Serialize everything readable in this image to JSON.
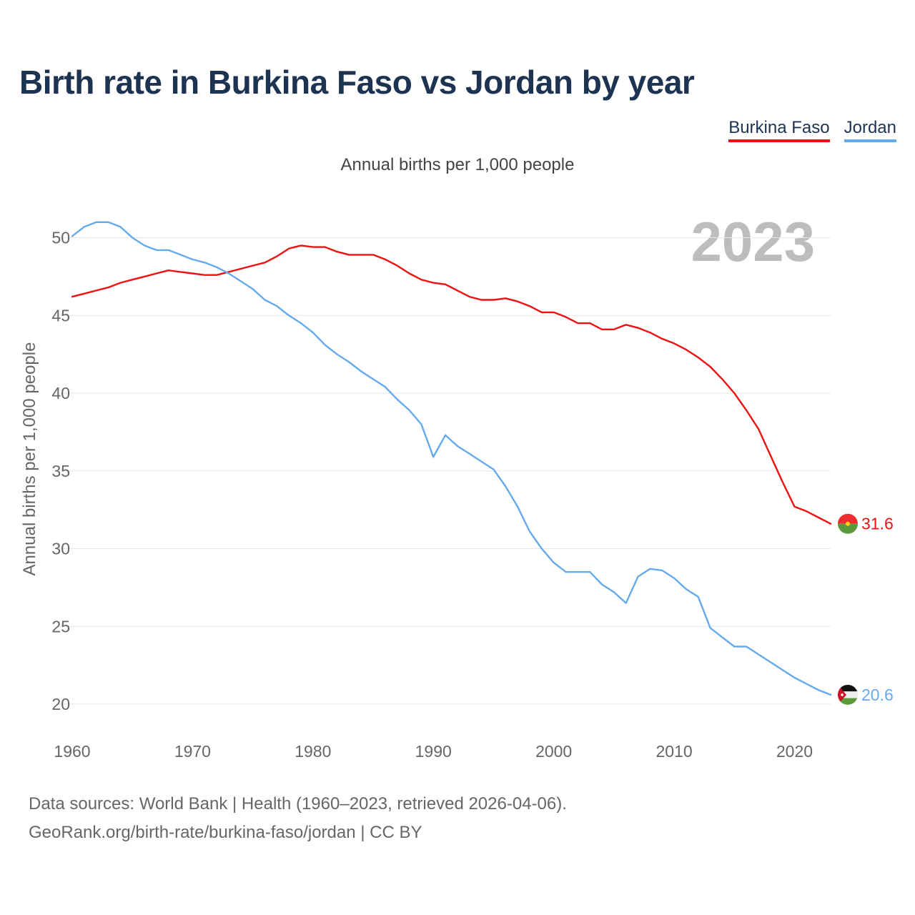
{
  "chart_data": {
    "type": "line",
    "title": "Birth rate in Burkina Faso vs Jordan by year",
    "subtitle": "Annual births per 1,000 people",
    "ylabel": "Annual births per 1,000 people",
    "xlabel": "",
    "year_label": "2023",
    "xlim": [
      1960,
      2023
    ],
    "ylim": [
      18.5,
      53
    ],
    "yticks": [
      20,
      25,
      30,
      35,
      40,
      45,
      50
    ],
    "xticks": [
      1960,
      1970,
      1980,
      1990,
      2000,
      2010,
      2020
    ],
    "x": [
      1960,
      1961,
      1962,
      1963,
      1964,
      1965,
      1966,
      1967,
      1968,
      1969,
      1970,
      1971,
      1972,
      1973,
      1974,
      1975,
      1976,
      1977,
      1978,
      1979,
      1980,
      1981,
      1982,
      1983,
      1984,
      1985,
      1986,
      1987,
      1988,
      1989,
      1990,
      1991,
      1992,
      1993,
      1994,
      1995,
      1996,
      1997,
      1998,
      1999,
      2000,
      2001,
      2002,
      2003,
      2004,
      2005,
      2006,
      2007,
      2008,
      2009,
      2010,
      2011,
      2012,
      2013,
      2014,
      2015,
      2016,
      2017,
      2018,
      2019,
      2020,
      2021,
      2022,
      2023
    ],
    "series": [
      {
        "name": "Burkina Faso",
        "color": "#ee1111",
        "end_label": "31.6",
        "values": [
          46.2,
          46.4,
          46.6,
          46.8,
          47.1,
          47.3,
          47.5,
          47.7,
          47.9,
          47.8,
          47.7,
          47.6,
          47.6,
          47.8,
          48.0,
          48.2,
          48.4,
          48.8,
          49.3,
          49.5,
          49.4,
          49.4,
          49.1,
          48.9,
          48.9,
          48.9,
          48.6,
          48.2,
          47.7,
          47.3,
          47.1,
          47.0,
          46.6,
          46.2,
          46.0,
          46.0,
          46.1,
          45.9,
          45.6,
          45.2,
          45.2,
          44.9,
          44.5,
          44.5,
          44.1,
          44.1,
          44.4,
          44.2,
          43.9,
          43.5,
          43.2,
          42.8,
          42.3,
          41.7,
          40.9,
          40.0,
          38.9,
          37.7,
          36.0,
          34.3,
          32.7,
          32.4,
          32.0,
          31.6
        ]
      },
      {
        "name": "Jordan",
        "color": "#66aaee",
        "end_label": "20.6",
        "values": [
          50.1,
          50.7,
          51.0,
          51.0,
          50.7,
          50.0,
          49.5,
          49.2,
          49.2,
          48.9,
          48.6,
          48.4,
          48.1,
          47.7,
          47.2,
          46.7,
          46.0,
          45.6,
          45.0,
          44.5,
          43.9,
          43.1,
          42.5,
          42.0,
          41.4,
          40.9,
          40.4,
          39.6,
          38.9,
          38.0,
          35.9,
          37.3,
          36.6,
          36.1,
          35.6,
          35.1,
          34.0,
          32.7,
          31.1,
          30.0,
          29.1,
          28.5,
          28.5,
          28.5,
          27.7,
          27.2,
          26.5,
          28.2,
          28.7,
          28.6,
          28.1,
          27.4,
          26.9,
          24.9,
          24.3,
          23.7,
          23.7,
          23.2,
          22.7,
          22.2,
          21.7,
          21.3,
          20.9,
          20.6
        ]
      }
    ]
  },
  "legend": {
    "items": [
      "Burkina Faso",
      "Jordan"
    ]
  },
  "footer": {
    "line1": "Data sources: World Bank | Health (1960–2023, retrieved 2026-04-06).",
    "line2": "GeoRank.org/birth-rate/burkina-faso/jordan | CC BY"
  }
}
